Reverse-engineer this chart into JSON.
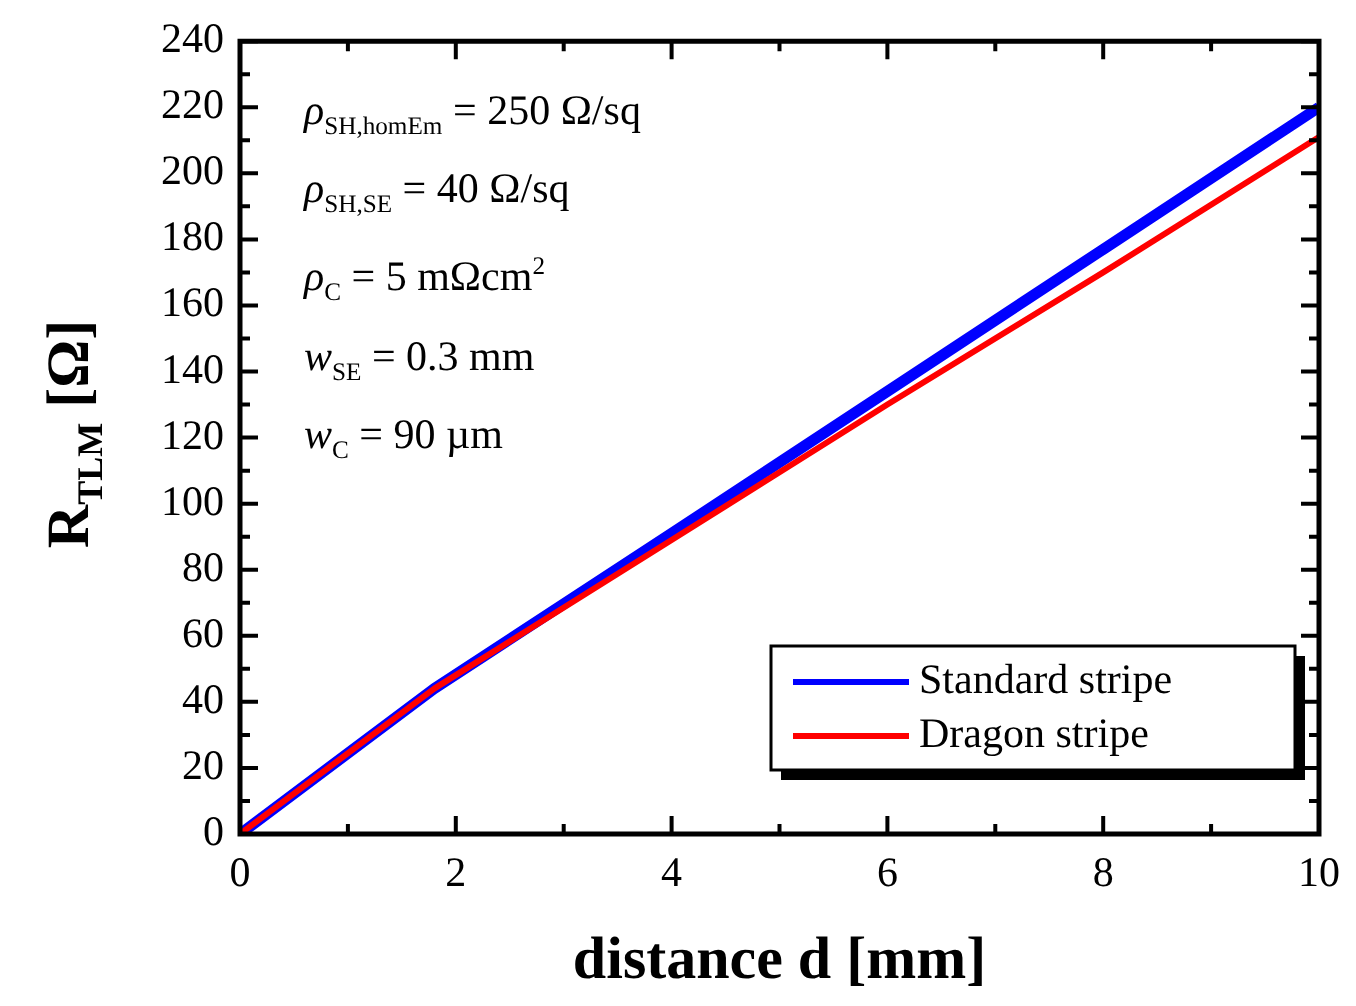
{
  "chart_data": {
    "type": "line",
    "xlabel": "distance d [mm]",
    "ylabel": "R$_{TLM}$ [Ω]",
    "xlim": [
      0,
      10
    ],
    "xticks": [
      0,
      2,
      4,
      6,
      8,
      10
    ],
    "ylim": [
      0,
      240
    ],
    "yticks": [
      0,
      20,
      40,
      60,
      80,
      100,
      120,
      140,
      160,
      180,
      200,
      220,
      240
    ],
    "grid": false,
    "legend": "bottom right",
    "marker": "none",
    "line_style": "solid",
    "annotations": [
      "ρ$_{SH,homEm}$ = 250 Ω/sq",
      "ρ$_{SH,SE}$ = 40 Ω/sq",
      "ρ$_{C}$ = 5 mΩcm$^{2}$",
      "w$_{SE}$ = 0.3 mm",
      "w$_{C}$ = 90 µm"
    ],
    "series": [
      {
        "name": "Standard stripe",
        "color": "#0000ff",
        "x": [
          0,
          1.8,
          4,
          6,
          8,
          10
        ],
        "values": [
          0,
          44,
          91,
          134,
          177,
          220
        ]
      },
      {
        "name": "Dragon stripe",
        "color": "#ff0000",
        "x": [
          0,
          1.8,
          4,
          6,
          8,
          10
        ],
        "values": [
          0,
          44,
          89,
          130,
          170,
          211
        ]
      }
    ]
  }
}
